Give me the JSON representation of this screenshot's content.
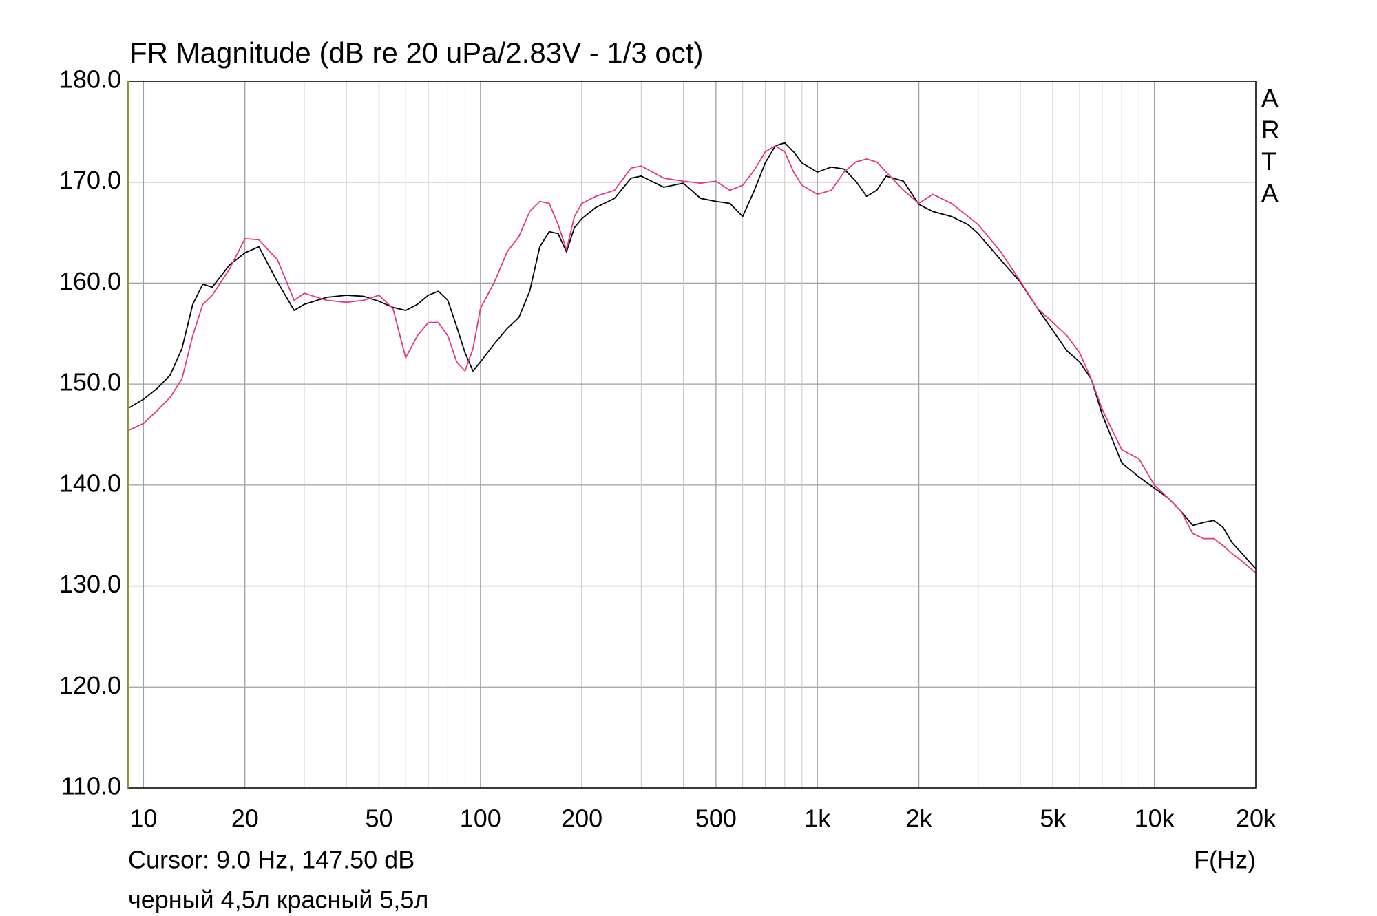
{
  "chart_data": {
    "type": "line",
    "title": "FR Magnitude (dB re 20 uPa/2.83V - 1/3 oct)",
    "side_label": "ARTA",
    "cursor_text": "Cursor: 9.0 Hz, 147.50 dB",
    "x_label": "F(Hz)",
    "note": "черный 4,5л красный 5,5л",
    "x_scale": "log",
    "grid": true,
    "xlim": [
      9,
      20000
    ],
    "ylim": [
      110,
      180
    ],
    "xticks": [
      10,
      20,
      50,
      100,
      200,
      500,
      {
        "value": 1000,
        "label": "1k"
      },
      {
        "value": 2000,
        "label": "2k"
      },
      {
        "value": 5000,
        "label": "5k"
      },
      {
        "value": 10000,
        "label": "10k"
      },
      {
        "value": 20000,
        "label": "20k"
      }
    ],
    "xminorticks": [
      30,
      40,
      60,
      70,
      80,
      90,
      300,
      400,
      600,
      700,
      800,
      900,
      3000,
      4000,
      6000,
      7000,
      8000,
      9000
    ],
    "yticks": [
      {
        "value": 110,
        "label": "110.0"
      },
      {
        "value": 120,
        "label": "120.0"
      },
      {
        "value": 130,
        "label": "130.0"
      },
      {
        "value": 140,
        "label": "140.0"
      },
      {
        "value": 150,
        "label": "150.0"
      },
      {
        "value": 160,
        "label": "160.0"
      },
      {
        "value": 170,
        "label": "170.0"
      },
      {
        "value": 180,
        "label": "180.0"
      }
    ],
    "x": [
      9,
      10,
      11,
      12,
      13,
      14,
      15,
      16,
      18,
      20,
      22,
      25,
      28,
      30,
      35,
      40,
      45,
      50,
      55,
      60,
      65,
      70,
      75,
      80,
      85,
      90,
      95,
      100,
      110,
      120,
      130,
      140,
      150,
      160,
      170,
      180,
      190,
      200,
      220,
      250,
      280,
      300,
      350,
      400,
      450,
      500,
      550,
      600,
      650,
      700,
      750,
      800,
      850,
      900,
      1000,
      1100,
      1200,
      1300,
      1400,
      1500,
      1600,
      1800,
      2000,
      2200,
      2500,
      2800,
      3000,
      3500,
      4000,
      4500,
      5000,
      5500,
      6000,
      6500,
      7000,
      8000,
      9000,
      10000,
      11000,
      12000,
      13000,
      14000,
      15000,
      16000,
      17000,
      18000,
      20000
    ],
    "series": [
      {
        "color": "#000000",
        "values": [
          147.6,
          148.5,
          149.6,
          150.9,
          153.5,
          157.9,
          159.9,
          159.6,
          161.8,
          163.0,
          163.6,
          160.1,
          157.3,
          157.9,
          158.6,
          158.8,
          158.7,
          158.2,
          157.6,
          157.3,
          157.9,
          158.8,
          159.2,
          158.3,
          155.7,
          153.1,
          151.3,
          152.2,
          154.0,
          155.5,
          156.6,
          159.2,
          163.6,
          165.1,
          164.9,
          163.1,
          165.5,
          166.4,
          167.5,
          168.4,
          170.4,
          170.6,
          169.5,
          169.9,
          168.4,
          168.1,
          167.9,
          166.6,
          169.2,
          171.9,
          173.6,
          173.9,
          173.0,
          171.9,
          171.0,
          171.5,
          171.3,
          170.1,
          168.6,
          169.2,
          170.6,
          170.1,
          167.8,
          167.1,
          166.6,
          165.8,
          164.9,
          162.3,
          160.1,
          157.5,
          155.3,
          153.3,
          152.2,
          150.5,
          147.0,
          142.2,
          140.8,
          139.7,
          138.7,
          137.4,
          136.0,
          136.3,
          136.5,
          135.8,
          134.3,
          133.4,
          131.7
        ]
      },
      {
        "color": "#e8358a",
        "values": [
          145.4,
          146.1,
          147.4,
          148.7,
          150.5,
          154.8,
          157.9,
          158.8,
          161.4,
          164.4,
          164.3,
          162.3,
          158.3,
          159.0,
          158.3,
          158.1,
          158.3,
          158.8,
          157.5,
          152.6,
          154.8,
          156.1,
          156.1,
          154.8,
          152.2,
          151.3,
          153.5,
          157.5,
          160.1,
          163.1,
          164.6,
          167.1,
          168.1,
          167.9,
          165.8,
          163.3,
          166.6,
          167.9,
          168.6,
          169.2,
          171.4,
          171.6,
          170.4,
          170.1,
          169.9,
          170.1,
          169.2,
          169.7,
          171.2,
          173.0,
          173.6,
          173.0,
          171.0,
          169.7,
          168.8,
          169.2,
          171.0,
          172.0,
          172.3,
          172.0,
          171.0,
          169.2,
          167.9,
          168.8,
          167.9,
          166.6,
          165.8,
          163.1,
          160.2,
          157.5,
          156.1,
          154.8,
          153.1,
          150.5,
          147.5,
          143.5,
          142.6,
          140.0,
          138.7,
          137.4,
          135.2,
          134.7,
          134.7,
          134.0,
          133.2,
          132.6,
          131.3
        ]
      }
    ]
  }
}
